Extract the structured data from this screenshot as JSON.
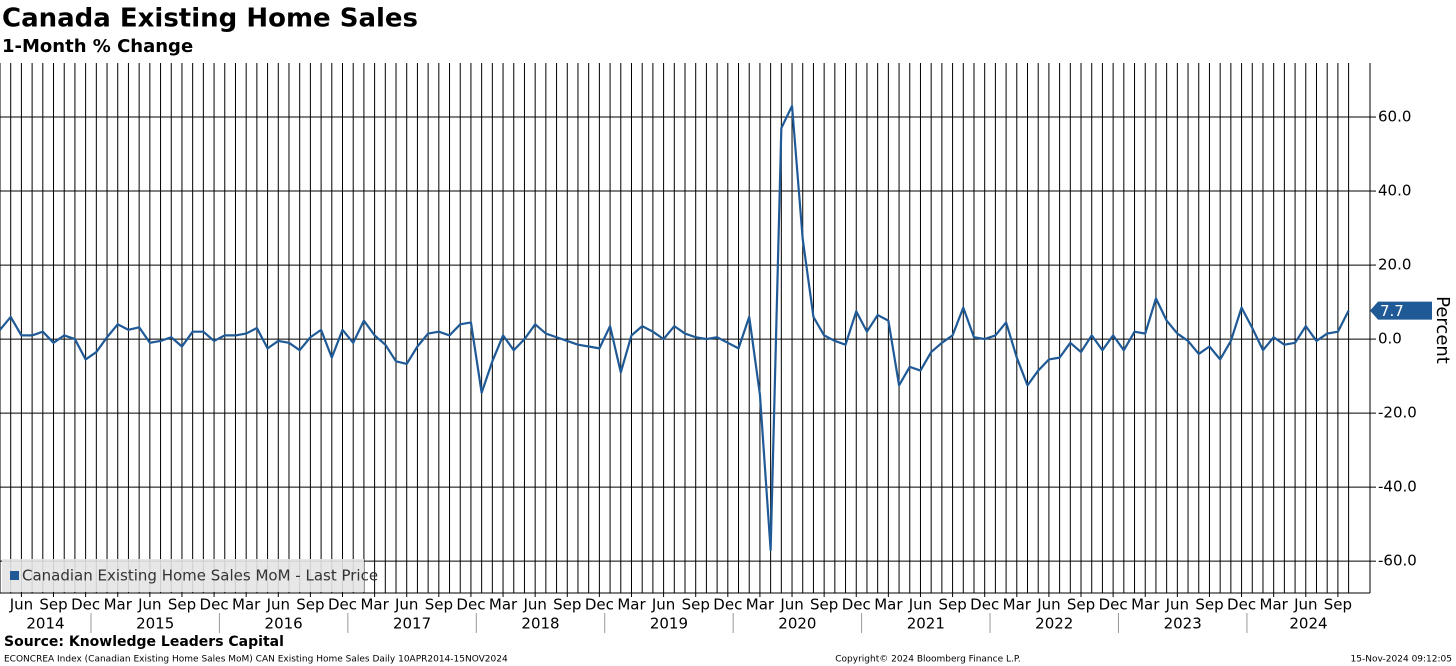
{
  "chart_data": {
    "type": "line",
    "title": "Canada Existing Home Sales",
    "subtitle": "1-Month % Change",
    "y_axis_label": "Percent",
    "source": "Source: Knowledge Leaders Capital",
    "footer_left": "ECONCREA Index (Canadian Existing Home Sales MoM) CAN Existing Home Sales  Daily 10APR2014-15NOV2024",
    "footer_center": "Copyright© 2024 Bloomberg Finance L.P.",
    "footer_right": "15-Nov-2024 09:12:05",
    "x": [
      "2014-04",
      "2014-05",
      "2014-06",
      "2014-07",
      "2014-08",
      "2014-09",
      "2014-10",
      "2014-11",
      "2014-12",
      "2015-01",
      "2015-02",
      "2015-03",
      "2015-04",
      "2015-05",
      "2015-06",
      "2015-07",
      "2015-08",
      "2015-09",
      "2015-10",
      "2015-11",
      "2015-12",
      "2016-01",
      "2016-02",
      "2016-03",
      "2016-04",
      "2016-05",
      "2016-06",
      "2016-07",
      "2016-08",
      "2016-09",
      "2016-10",
      "2016-11",
      "2016-12",
      "2017-01",
      "2017-02",
      "2017-03",
      "2017-04",
      "2017-05",
      "2017-06",
      "2017-07",
      "2017-08",
      "2017-09",
      "2017-10",
      "2017-11",
      "2017-12",
      "2018-01",
      "2018-02",
      "2018-03",
      "2018-04",
      "2018-05",
      "2018-06",
      "2018-07",
      "2018-08",
      "2018-09",
      "2018-10",
      "2018-11",
      "2018-12",
      "2019-01",
      "2019-02",
      "2019-03",
      "2019-04",
      "2019-05",
      "2019-06",
      "2019-07",
      "2019-08",
      "2019-09",
      "2019-10",
      "2019-11",
      "2019-12",
      "2020-01",
      "2020-02",
      "2020-03",
      "2020-04",
      "2020-05",
      "2020-06",
      "2020-07",
      "2020-08",
      "2020-09",
      "2020-10",
      "2020-11",
      "2020-12",
      "2021-01",
      "2021-02",
      "2021-03",
      "2021-04",
      "2021-05",
      "2021-06",
      "2021-07",
      "2021-08",
      "2021-09",
      "2021-10",
      "2021-11",
      "2021-12",
      "2022-01",
      "2022-02",
      "2022-03",
      "2022-04",
      "2022-05",
      "2022-06",
      "2022-07",
      "2022-08",
      "2022-09",
      "2022-10",
      "2022-11",
      "2022-12",
      "2023-01",
      "2023-02",
      "2023-03",
      "2023-04",
      "2023-05",
      "2023-06",
      "2023-07",
      "2023-08",
      "2023-09",
      "2023-10",
      "2023-11",
      "2023-12",
      "2024-01",
      "2024-02",
      "2024-03",
      "2024-04",
      "2024-05",
      "2024-06",
      "2024-07",
      "2024-08",
      "2024-09",
      "2024-10"
    ],
    "series": [
      {
        "name": "Canadian Existing Home Sales MoM - Last Price",
        "color": "#1f5a96",
        "values": [
          2.5,
          6,
          1,
          1,
          2,
          -1,
          1,
          0,
          -5.5,
          -3.5,
          0.5,
          4,
          2.5,
          3.2,
          -1,
          -0.5,
          0.5,
          -2,
          2,
          2,
          -0.5,
          1,
          1,
          1.5,
          3,
          -2.5,
          -0.5,
          -1,
          -3,
          0.5,
          2.5,
          -5,
          2.5,
          -1,
          5,
          1,
          -1.5,
          -6,
          -6.7,
          -2,
          1.5,
          2,
          1,
          4,
          4.5,
          -14.5,
          -6,
          1,
          -3,
          0,
          4,
          1.5,
          0.5,
          -0.5,
          -1.5,
          -2,
          -2.5,
          3.5,
          -9,
          1,
          3.5,
          2,
          0,
          3.5,
          1.5,
          0.5,
          0,
          0.5,
          -1,
          -2.5,
          6,
          -15,
          -57,
          57,
          63,
          27,
          6,
          1,
          -0.5,
          -1.5,
          7.5,
          2,
          6.5,
          5,
          -12.5,
          -7.5,
          -8.5,
          -3.5,
          -1,
          1,
          8.5,
          0.5,
          0,
          1,
          4.5,
          -5,
          -12.5,
          -8.5,
          -5.5,
          -5,
          -1,
          -3.5,
          1,
          -3,
          1,
          -3,
          2,
          1.5,
          11,
          5,
          1.5,
          -0.5,
          -4,
          -2,
          -5.5,
          -0.5,
          8.5,
          3,
          -3,
          0.5,
          -1.5,
          -1,
          3.5,
          -0.5,
          1.5,
          2,
          7.7
        ]
      }
    ],
    "xlim": [
      "2014-04",
      "2024-12"
    ],
    "xticks": [
      {
        "value": "2014-06",
        "label": "Jun"
      },
      {
        "value": "2014-09",
        "label": "Sep"
      },
      {
        "value": "2014-12",
        "label": "Dec"
      },
      {
        "value": "2015-03",
        "label": "Mar"
      },
      {
        "value": "2015-06",
        "label": "Jun"
      },
      {
        "value": "2015-09",
        "label": "Sep"
      },
      {
        "value": "2015-12",
        "label": "Dec"
      },
      {
        "value": "2016-03",
        "label": "Mar"
      },
      {
        "value": "2016-06",
        "label": "Jun"
      },
      {
        "value": "2016-09",
        "label": "Sep"
      },
      {
        "value": "2016-12",
        "label": "Dec"
      },
      {
        "value": "2017-03",
        "label": "Mar"
      },
      {
        "value": "2017-06",
        "label": "Jun"
      },
      {
        "value": "2017-09",
        "label": "Sep"
      },
      {
        "value": "2017-12",
        "label": "Dec"
      },
      {
        "value": "2018-03",
        "label": "Mar"
      },
      {
        "value": "2018-06",
        "label": "Jun"
      },
      {
        "value": "2018-09",
        "label": "Sep"
      },
      {
        "value": "2018-12",
        "label": "Dec"
      },
      {
        "value": "2019-03",
        "label": "Mar"
      },
      {
        "value": "2019-06",
        "label": "Jun"
      },
      {
        "value": "2019-09",
        "label": "Sep"
      },
      {
        "value": "2019-12",
        "label": "Dec"
      },
      {
        "value": "2020-03",
        "label": "Mar"
      },
      {
        "value": "2020-06",
        "label": "Jun"
      },
      {
        "value": "2020-09",
        "label": "Sep"
      },
      {
        "value": "2020-12",
        "label": "Dec"
      },
      {
        "value": "2021-03",
        "label": "Mar"
      },
      {
        "value": "2021-06",
        "label": "Jun"
      },
      {
        "value": "2021-09",
        "label": "Sep"
      },
      {
        "value": "2021-12",
        "label": "Dec"
      },
      {
        "value": "2022-03",
        "label": "Mar"
      },
      {
        "value": "2022-06",
        "label": "Jun"
      },
      {
        "value": "2022-09",
        "label": "Sep"
      },
      {
        "value": "2022-12",
        "label": "Dec"
      },
      {
        "value": "2023-03",
        "label": "Mar"
      },
      {
        "value": "2023-06",
        "label": "Jun"
      },
      {
        "value": "2023-09",
        "label": "Sep"
      },
      {
        "value": "2023-12",
        "label": "Dec"
      },
      {
        "value": "2024-03",
        "label": "Mar"
      },
      {
        "value": "2024-06",
        "label": "Jun"
      },
      {
        "value": "2024-09",
        "label": "Sep"
      }
    ],
    "year_ticks": [
      2014,
      2015,
      2016,
      2017,
      2018,
      2019,
      2020,
      2021,
      2022,
      2023,
      2024
    ],
    "ylim": [
      -68.6,
      74.6
    ],
    "yticks": [
      {
        "value": -60,
        "label": "-60.0"
      },
      {
        "value": -40,
        "label": "-40.0"
      },
      {
        "value": -20,
        "label": "-20.0"
      },
      {
        "value": 0,
        "label": "0.0"
      },
      {
        "value": 20,
        "label": "20.0"
      },
      {
        "value": 40,
        "label": "40.0"
      },
      {
        "value": 60,
        "label": "60.0"
      }
    ],
    "grid": true,
    "legend": "bottom-left"
  }
}
